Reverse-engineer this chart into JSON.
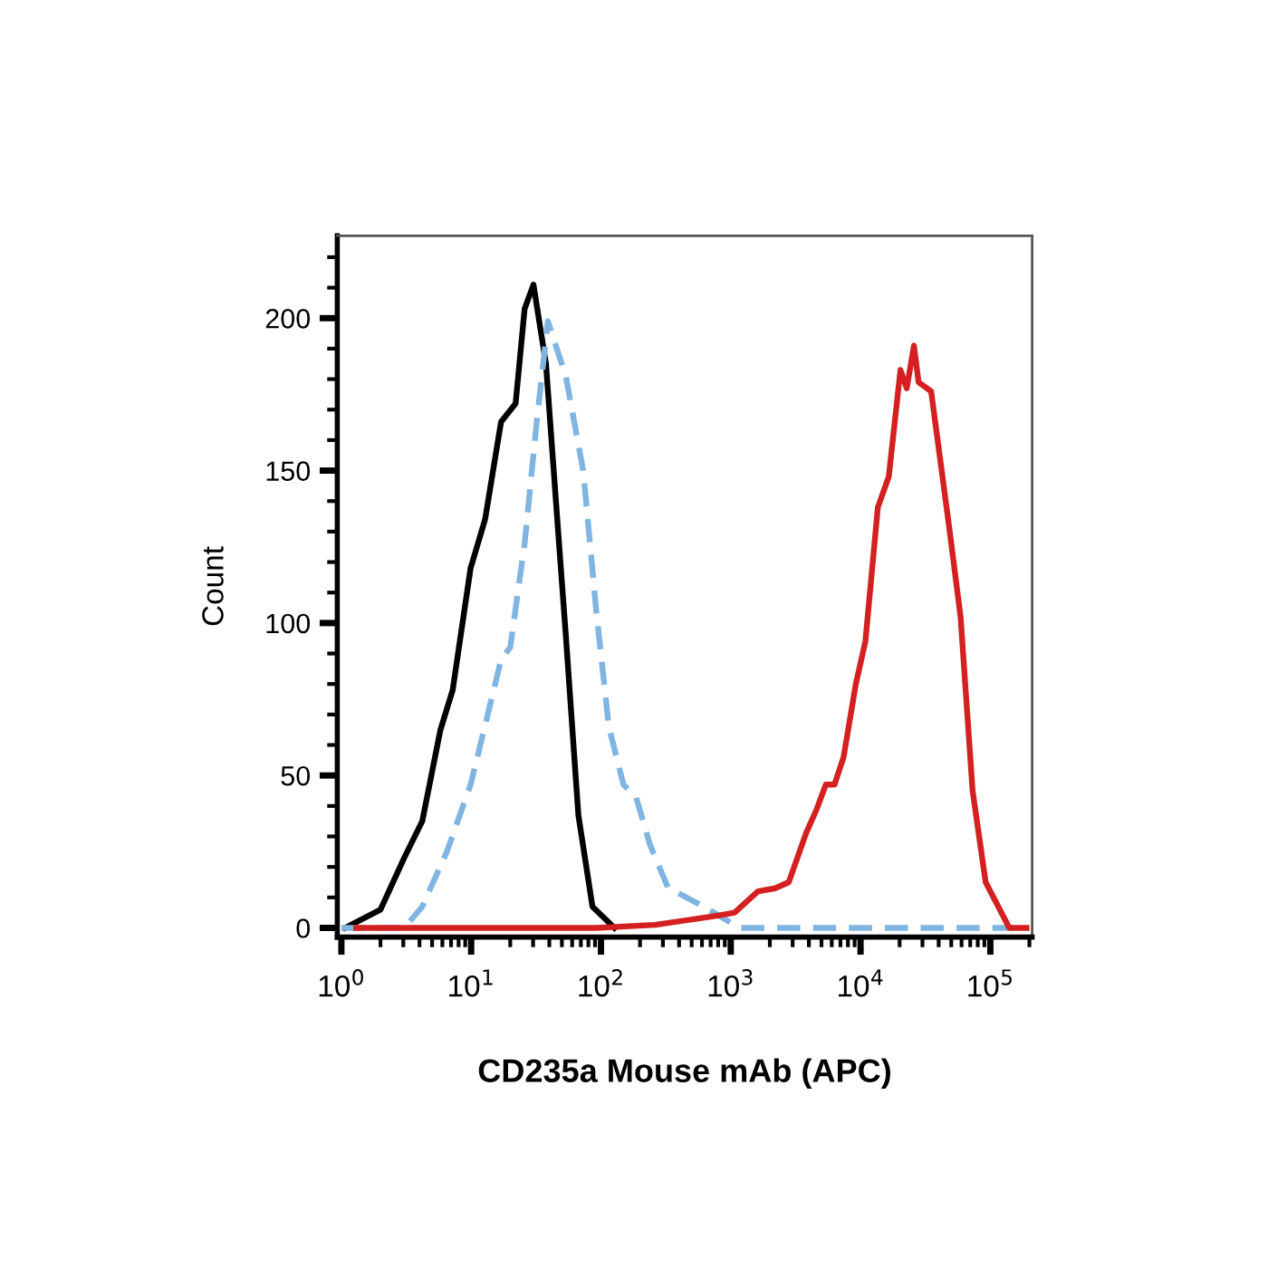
{
  "chart_data": {
    "type": "line",
    "xlabel": "CD235a Mouse mAb (APC)",
    "ylabel": "Count",
    "log": "x",
    "xlim": [
      0.93,
      210000
    ],
    "ylim": [
      -3,
      227
    ],
    "xticks": [
      {
        "value": 1,
        "label": "10$^{0}$"
      },
      {
        "value": 10,
        "label": "10$^{1}$"
      },
      {
        "value": 100,
        "label": "10$^{2}$"
      },
      {
        "value": 1000,
        "label": "10$^{3}$"
      },
      {
        "value": 10000,
        "label": "10$^{4}$"
      },
      {
        "value": 100000,
        "label": "10$^{5}$"
      }
    ],
    "yticks": [
      0,
      50,
      100,
      150,
      200
    ],
    "grid": false,
    "series": [
      {
        "color": "#000000",
        "line_style": "solid",
        "x": [
          1.07,
          2.0,
          3.05,
          4.2,
          5.8,
          7.2,
          9.9,
          12.8,
          17,
          22,
          25.8,
          30.2,
          37.7,
          45.7,
          53.6,
          67,
          86,
          127
        ],
        "values": [
          0,
          6,
          23,
          35,
          65,
          78,
          118,
          134,
          166,
          172,
          203,
          211,
          185,
          136,
          96,
          37,
          7,
          0
        ]
      },
      {
        "color": "#7fb5e0",
        "line_style": "dashed",
        "x": [
          1.0,
          3.05,
          4.2,
          6.5,
          9.9,
          13.6,
          17,
          20,
          25.8,
          32,
          39,
          53.6,
          73,
          92,
          115,
          149,
          186,
          240,
          330,
          410,
          620,
          1170,
          1780,
          150000
        ],
        "values": [
          0,
          0,
          7,
          25,
          47,
          71,
          88,
          92,
          126,
          166,
          199,
          181,
          150,
          104,
          66,
          47,
          43,
          27,
          13,
          11,
          7,
          0,
          0,
          0
        ]
      },
      {
        "color": "#d42020",
        "line_style": "solid",
        "x": [
          1.3,
          92,
          262,
          780,
          1070,
          1620,
          2200,
          2800,
          3800,
          4600,
          5400,
          6300,
          7400,
          9200,
          10900,
          13600,
          16500,
          20300,
          22700,
          25800,
          28000,
          35000,
          48000,
          59000,
          73000,
          92000,
          140000,
          190000
        ],
        "values": [
          0,
          0,
          1,
          4,
          5,
          12,
          13,
          15,
          31,
          39,
          47,
          47,
          56,
          80,
          94,
          138,
          148,
          183,
          177,
          191,
          179,
          176,
          132,
          102,
          45,
          15,
          0,
          0
        ]
      }
    ]
  }
}
